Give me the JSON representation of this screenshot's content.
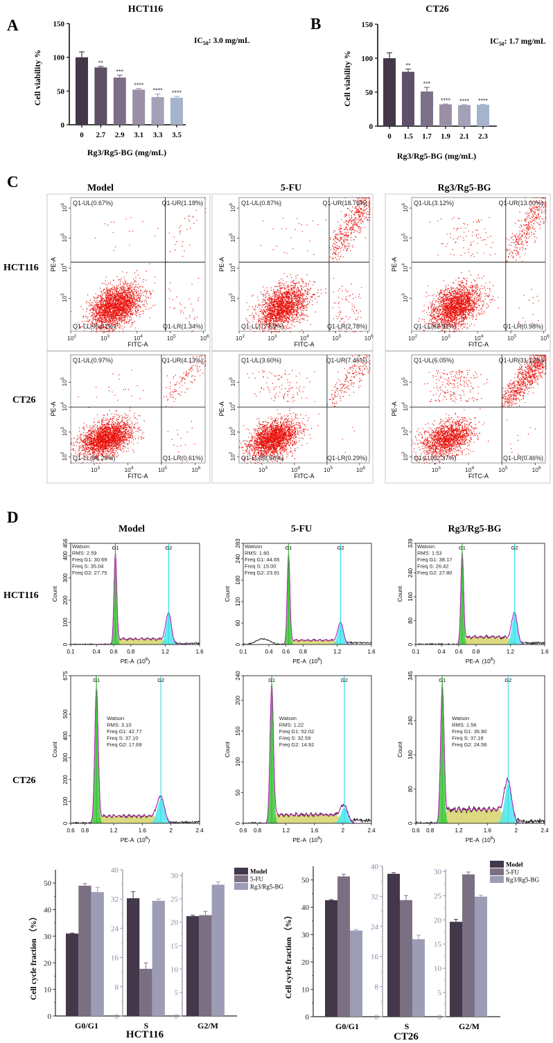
{
  "panels": {
    "A": "A",
    "B": "B",
    "C": "C",
    "D": "D"
  },
  "colors": {
    "flow_dots": "#e8120c",
    "g1_fill": "#3ec93a",
    "s_fill": "#d6d36a",
    "g2_fill": "#4fe6ee",
    "fit_line": "#d01ad0",
    "model": "#43374a",
    "fu": "#7b7083",
    "rg": "#9c9db5"
  },
  "chart_data": {
    "viability": [
      {
        "type": "bar",
        "title": "HCT116",
        "ylabel": "Cell viability %",
        "xlabel": "Rg3/Rg5-BG (mg/mL)",
        "ylim": [
          0,
          150
        ],
        "yticks": [
          "0",
          "50",
          "100",
          "150"
        ],
        "categories": [
          "0",
          "2.7",
          "2.9",
          "3.1",
          "3.3",
          "3.5"
        ],
        "values": [
          100,
          85,
          70,
          52,
          41,
          40
        ],
        "errors": [
          8,
          1.5,
          3.5,
          1.5,
          4.5,
          2
        ],
        "significance": [
          "",
          "**",
          "***",
          "****",
          "****",
          "****"
        ],
        "bar_colors": [
          "#433748",
          "#5e5066",
          "#7c7088",
          "#9a8fa6",
          "#a3a0b8",
          "#a5b4cc"
        ],
        "ic50": {
          "prefix": "IC",
          "sub": "50",
          "text": ": 3.0 mg/mL"
        }
      },
      {
        "type": "bar",
        "title": "CT26",
        "ylabel": "Cell viability %",
        "xlabel": "Rg3/Rg5-BG (mg/mL)",
        "ylim": [
          0,
          150
        ],
        "yticks": [
          "0",
          "50",
          "100",
          "150"
        ],
        "categories": [
          "0",
          "1.5",
          "1.7",
          "1.9",
          "2.1",
          "2.3"
        ],
        "values": [
          100,
          80,
          51,
          32,
          31,
          31.5
        ],
        "errors": [
          8,
          4,
          6,
          0.5,
          0.5,
          0.5
        ],
        "significance": [
          "",
          "**",
          "***",
          "****",
          "****",
          "****"
        ],
        "bar_colors": [
          "#433748",
          "#5e5066",
          "#7c7088",
          "#9a8fa6",
          "#a3a0b8",
          "#a5b4cc"
        ],
        "ic50": {
          "prefix": "IC",
          "sub": "50",
          "text": ": 1.7 mg/mL"
        }
      }
    ],
    "flow": {
      "type": "scatter",
      "columns": [
        "Model",
        "5-FU",
        "Rg3/Rg5-BG"
      ],
      "rows": [
        "HCT116",
        "CT26"
      ],
      "xlabel": "FITC-A",
      "ylabel": "PE-A",
      "plots": [
        {
          "gate_x_log": 4.85,
          "gate_y_log": 4.2,
          "xticks": [
            "2",
            "3",
            "4",
            "5",
            "6"
          ],
          "yticks": [
            "3",
            "4",
            "5",
            "6"
          ],
          "UL": "Q1-UL(0.67%)",
          "UR": "Q1-UR(1.18%)",
          "LL": "Q1-LL(96.81%)",
          "LR": "Q1-LR(1.34%)",
          "pct": [
            0.67,
            1.18,
            96.81,
            1.34
          ]
        },
        {
          "gate_x_log": 4.8,
          "gate_y_log": 4.2,
          "xticks": [
            "2",
            "3",
            "4",
            "5",
            "6"
          ],
          "yticks": [
            "3",
            "4",
            "5",
            "6"
          ],
          "UL": "Q1-UL(0.87%)",
          "UR": "Q1-UR(18.76%)",
          "LL": "Q1-LL(77.59%)",
          "LR": "Q1-LR(2.78%)",
          "pct": [
            0.87,
            18.76,
            77.59,
            2.78
          ]
        },
        {
          "gate_x_log": 4.85,
          "gate_y_log": 4.2,
          "xticks": [
            "2",
            "3",
            "4",
            "5",
            "6"
          ],
          "yticks": [
            "3",
            "4",
            "5",
            "6"
          ],
          "UL": "Q1-UL(3.12%)",
          "UR": "Q1-UR(13.00%)",
          "LL": "Q1-LL(82.91%)",
          "LR": "Q1-LR(0.98%)",
          "pct": [
            3.12,
            13.0,
            82.91,
            0.98
          ]
        },
        {
          "gate_x_log": 5.0,
          "gate_y_log": 4.0,
          "xticks": [
            "3",
            "4",
            "5",
            "6"
          ],
          "yticks": [
            "2",
            "3",
            "4",
            "5"
          ],
          "UL": "Q1-UL(0.97%)",
          "UR": "Q1-UR(4.13%)",
          "LL": "Q1-LL(94.29%)",
          "LR": "Q1-LR(0.61%)",
          "pct": [
            0.97,
            4.13,
            94.29,
            0.61
          ]
        },
        {
          "gate_x_log": 5.0,
          "gate_y_log": 4.0,
          "xticks": [
            "3",
            "4",
            "5",
            "6"
          ],
          "yticks": [
            "2",
            "3",
            "4",
            "5"
          ],
          "UL": "Q1-UL(3.60%)",
          "UR": "Q1-UR(7.45%)",
          "LL": "Q1-LL(88.66%)",
          "LR": "Q1-LR(0.29%)",
          "pct": [
            3.6,
            7.45,
            88.66,
            0.29
          ]
        },
        {
          "gate_x_log": 5.0,
          "gate_y_log": 4.0,
          "xticks": [
            "3",
            "4",
            "5",
            "6"
          ],
          "yticks": [
            "2",
            "3",
            "4",
            "5"
          ],
          "UL": "Q1-UL(6.05%)",
          "UR": "Q1-UR(31.12%)",
          "LL": "Q1-LL(62.37%)",
          "LR": "Q1-LR(0.46%)",
          "pct": [
            6.05,
            31.12,
            62.37,
            0.46
          ]
        }
      ]
    },
    "cycle_histograms": {
      "type": "area",
      "columns": [
        "Model",
        "5-FU",
        "Rg3/Rg5-BG"
      ],
      "rows": [
        "HCT116",
        "CT26"
      ],
      "xlabel": "PE-A",
      "xunit": "(10",
      "xunit_exp": "6",
      "xunit_close": ")",
      "ylabel": "Count",
      "g1_label": "G1",
      "g2_label": "G2",
      "plots": [
        {
          "xlim": [
            0.1,
            1.6
          ],
          "xticks": [
            "0.1",
            "0.4",
            "0.6",
            "0.8",
            "1.2",
            "1.6"
          ],
          "xtick_values": [
            0.1,
            0.4,
            0.6,
            0.8,
            1.2,
            1.6
          ],
          "ymax": 456,
          "yticks": [
            "0",
            "100",
            "200",
            "300",
            "400",
            "456"
          ],
          "g1": 0.62,
          "g2": 1.24,
          "g1_peak": 410,
          "g2_peak": 135,
          "s_level": 25,
          "debris": 0,
          "stats": [
            "Watson",
            "RMS: 2.59",
            "Freq G1: 30.69",
            "Freq S: 35.04",
            "Freq G2: 27.75"
          ]
        },
        {
          "xlim": [
            0.1,
            1.6
          ],
          "xticks": [
            "0.1",
            "0.4",
            "0.6",
            "0.8",
            "1.2",
            "1.6"
          ],
          "xtick_values": [
            0.1,
            0.4,
            0.6,
            0.8,
            1.2,
            1.6
          ],
          "ymax": 283,
          "yticks": [
            "0",
            "60",
            "120",
            "180",
            "240",
            "283"
          ],
          "g1": 0.63,
          "g2": 1.24,
          "g1_peak": 250,
          "g2_peak": 58,
          "s_level": 12,
          "debris": 16,
          "stats": [
            "Watson",
            "RMS: 1.60",
            "Freq G1: 44.65",
            "Freq S: 15.00",
            "Freq G2: 23.91"
          ]
        },
        {
          "xlim": [
            0.1,
            1.6
          ],
          "xticks": [
            "0.1",
            "0.4",
            "0.6",
            "0.8",
            "1.2",
            "1.6"
          ],
          "xtick_values": [
            0.1,
            0.4,
            0.6,
            0.8,
            1.2,
            1.6
          ],
          "ymax": 339,
          "yticks": [
            "0",
            "80",
            "160",
            "240",
            "339"
          ],
          "g1": 0.64,
          "g2": 1.25,
          "g1_peak": 305,
          "g2_peak": 100,
          "s_level": 25,
          "debris": 0,
          "stats": [
            "Watson",
            "RMS: 1.53",
            "Freq G1: 38.17",
            "Freq S: 26.42",
            "Freq G2: 27.80"
          ]
        },
        {
          "xlim": [
            0.6,
            2.4
          ],
          "xticks": [
            "0.6",
            "0.8",
            "1.2",
            "1.6",
            "2",
            "2.4"
          ],
          "xtick_values": [
            0.6,
            0.8,
            1.2,
            1.6,
            2,
            2.4
          ],
          "ymax": 675,
          "yticks": [
            "0",
            "100",
            "200",
            "300",
            "400",
            "500",
            "675"
          ],
          "g1": 0.96,
          "g2": 1.86,
          "g1_peak": 615,
          "g2_peak": 115,
          "s_level": 33,
          "debris": 0,
          "stats": [
            "Watson",
            "RMS: 3.10",
            "Freq G1: 42.77",
            "Freq S: 37.10",
            "Freq G2: 17.69"
          ]
        },
        {
          "xlim": [
            0.6,
            2.4
          ],
          "xticks": [
            "0.6",
            "0.8",
            "1.2",
            "1.6",
            "2",
            "2.4"
          ],
          "xtick_values": [
            0.6,
            0.8,
            1.2,
            1.6,
            2,
            2.4
          ],
          "ymax": 240,
          "yticks": [
            "0",
            "50",
            "100",
            "150",
            "200",
            "240"
          ],
          "g1": 1.0,
          "g2": 2.02,
          "g1_peak": 225,
          "g2_peak": 26,
          "s_level": 14,
          "debris": 0,
          "stats": [
            "Watson",
            "RMS: 1.22",
            "Freq G1: 52.02",
            "Freq S: 32.59",
            "Freq G2: 14.92"
          ]
        },
        {
          "xlim": [
            0.6,
            2.4
          ],
          "xticks": [
            "0.6",
            "0.8",
            "1.2",
            "1.6",
            "2",
            "2.4"
          ],
          "xtick_values": [
            0.6,
            0.8,
            1.2,
            1.6,
            2,
            2.4
          ],
          "ymax": 345,
          "yticks": [
            "0",
            "80",
            "160",
            "240",
            "345"
          ],
          "g1": 0.97,
          "g2": 1.89,
          "g1_peak": 320,
          "g2_peak": 92,
          "s_level": 32,
          "debris": 0,
          "stats": [
            "Watson",
            "RMS: 1.56",
            "Freq G1: 35.90",
            "Freq S: 37.18",
            "Freq G2: 24.56"
          ]
        }
      ]
    },
    "cycle_fractions": [
      {
        "type": "bar",
        "title": "HCT116",
        "ylabel": "Cell cycle fraction （%）",
        "legend": [
          "Model",
          "5-FU",
          "Rg3/Rg5-BG"
        ],
        "legend_position": "top-right",
        "groups": [
          {
            "name": "G0/G1",
            "ylim": [
              0,
              55
            ],
            "yticks": [
              "0",
              "10",
              "20",
              "30",
              "40",
              "50"
            ],
            "tick_values": [
              0,
              10,
              20,
              30,
              40,
              50
            ],
            "values": [
              31.0,
              49.0,
              46.6
            ],
            "errors": [
              0.2,
              0.8,
              1.8
            ]
          },
          {
            "name": "S",
            "ylim": [
              0,
              40
            ],
            "yticks": [
              "0",
              "8",
              "16",
              "24",
              "32",
              "40"
            ],
            "tick_values": [
              0,
              8,
              16,
              24,
              32,
              40
            ],
            "values": [
              32.2,
              12.9,
              31.5
            ],
            "errors": [
              1.8,
              1.6,
              0.5
            ]
          },
          {
            "name": "G2/M",
            "ylim": [
              0,
              30.6
            ],
            "yticks": [
              "0",
              "5",
              "10",
              "15",
              "20",
              "25",
              "30"
            ],
            "tick_values": [
              0,
              5,
              10,
              15,
              20,
              25,
              30
            ],
            "values": [
              21.3,
              21.5,
              28.0
            ],
            "errors": [
              0.2,
              0.8,
              0.6
            ]
          }
        ]
      },
      {
        "type": "bar",
        "title": "CT26",
        "ylabel": "Cell cycle fraction （%）",
        "legend": [
          "Model",
          "5-FU",
          "Rg3/Rg5-BG"
        ],
        "legend_position": "top-right",
        "groups": [
          {
            "name": "G0/G1",
            "ylim": [
              0,
              55
            ],
            "yticks": [
              "0",
              "10",
              "20",
              "30",
              "40",
              "50"
            ],
            "tick_values": [
              0,
              10,
              20,
              30,
              40,
              50
            ],
            "values": [
              42.6,
              51.3,
              31.5
            ],
            "errors": [
              0.2,
              0.8,
              0.4
            ]
          },
          {
            "name": "S",
            "ylim": [
              0,
              40
            ],
            "yticks": [
              "0",
              "8",
              "16",
              "24",
              "32",
              "40"
            ],
            "tick_values": [
              0,
              8,
              16,
              24,
              32,
              40
            ],
            "values": [
              38.0,
              31.0,
              20.6
            ],
            "errors": [
              0.3,
              1.2,
              1.1
            ]
          },
          {
            "name": "G2/M",
            "ylim": [
              0,
              30.5
            ],
            "yticks": [
              "0",
              "5",
              "10",
              "15",
              "20",
              "25",
              "30"
            ],
            "tick_values": [
              0,
              5,
              10,
              15,
              20,
              25,
              30
            ],
            "values": [
              19.6,
              29.4,
              24.8
            ],
            "errors": [
              0.5,
              0.5,
              0.3
            ]
          }
        ]
      }
    ]
  }
}
